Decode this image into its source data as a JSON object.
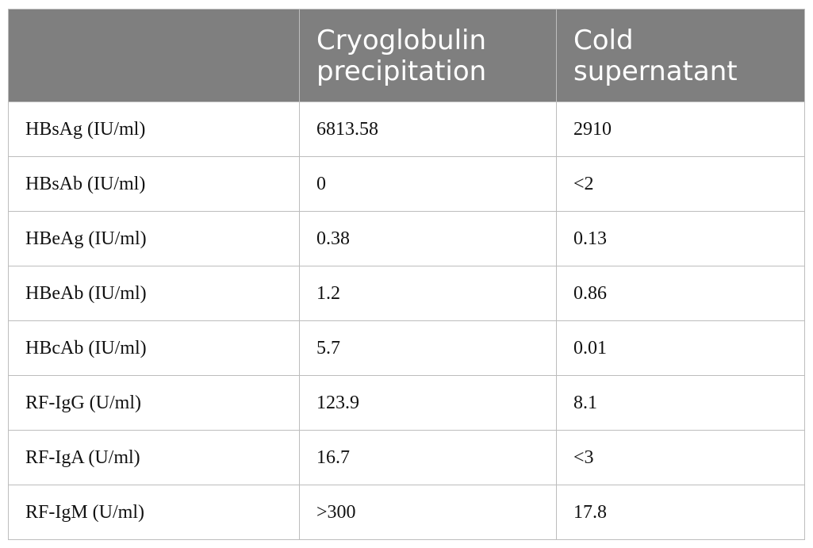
{
  "table": {
    "headers": [
      "",
      "Cryoglobulin precipitation",
      "Cold supernatant"
    ],
    "rows": [
      {
        "label": "HBsAg (IU/ml)",
        "precipitation": "6813.58",
        "supernatant": "2910"
      },
      {
        "label": "HBsAb (IU/ml)",
        "precipitation": "0",
        "supernatant": "<2"
      },
      {
        "label": "HBeAg (IU/ml)",
        "precipitation": "0.38",
        "supernatant": "0.13"
      },
      {
        "label": "HBeAb (IU/ml)",
        "precipitation": "1.2",
        "supernatant": "0.86"
      },
      {
        "label": "HBcAb (IU/ml)",
        "precipitation": "5.7",
        "supernatant": "0.01"
      },
      {
        "label": "RF-IgG (U/ml)",
        "precipitation": "123.9",
        "supernatant": "8.1"
      },
      {
        "label": "RF-IgA (U/ml)",
        "precipitation": "16.7",
        "supernatant": "<3"
      },
      {
        "label": "RF-IgM (U/ml)",
        "precipitation": ">300",
        "supernatant": "17.8"
      }
    ]
  },
  "colors": {
    "header_bg": "#7f7f7f",
    "header_text": "#ffffff",
    "border": "#bdbdbd"
  }
}
